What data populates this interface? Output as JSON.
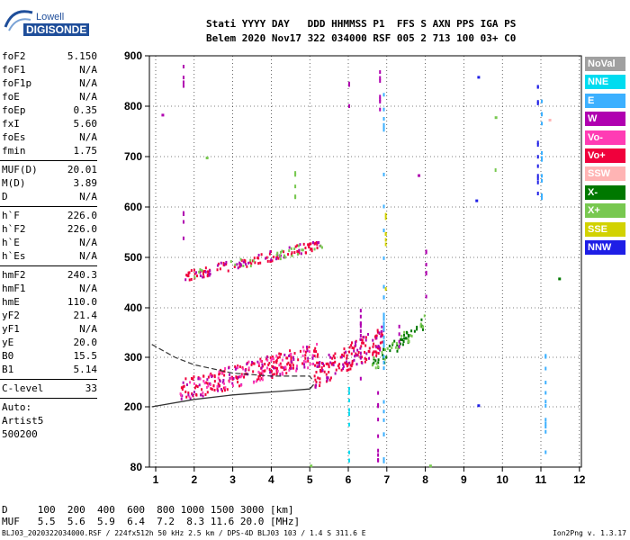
{
  "logo": {
    "top": "Lowell",
    "bottom": "DIGISONDE"
  },
  "header": {
    "line1": "Stati YYYY DAY   DDD HHMMSS P1  FFS S AXN PPS IGA PS",
    "line2": "Belem 2020 Nov17 322 034000 RSF 005 2 713 100 03+ C0"
  },
  "params": {
    "group1": [
      {
        "label": "foF2",
        "value": "5.150"
      },
      {
        "label": "foF1",
        "value": "N/A"
      },
      {
        "label": "foF1p",
        "value": "N/A"
      },
      {
        "label": "foE",
        "value": "N/A"
      },
      {
        "label": "foEp",
        "value": "0.35"
      },
      {
        "label": "fxI",
        "value": "5.60"
      },
      {
        "label": "foEs",
        "value": "N/A"
      },
      {
        "label": "fmin",
        "value": "1.75"
      }
    ],
    "group2": [
      {
        "label": "MUF(D)",
        "value": "20.01"
      },
      {
        "label": "M(D)",
        "value": "3.89"
      },
      {
        "label": "D",
        "value": "N/A"
      }
    ],
    "group3": [
      {
        "label": "h`F",
        "value": "226.0"
      },
      {
        "label": "h`F2",
        "value": "226.0"
      },
      {
        "label": "h`E",
        "value": "N/A"
      },
      {
        "label": "h`Es",
        "value": "N/A"
      }
    ],
    "group4": [
      {
        "label": "hmF2",
        "value": "240.3"
      },
      {
        "label": "hmF1",
        "value": "N/A"
      },
      {
        "label": "hmE",
        "value": "110.0"
      },
      {
        "label": "yF2",
        "value": "21.4"
      },
      {
        "label": "yF1",
        "value": "N/A"
      },
      {
        "label": "yE",
        "value": "20.0"
      },
      {
        "label": "B0",
        "value": "15.5"
      },
      {
        "label": "B1",
        "value": "5.14"
      }
    ],
    "clevel": {
      "label": "C-level",
      "value": "33"
    },
    "auto": [
      "Auto:",
      "Artist5",
      "500200"
    ]
  },
  "legend": [
    {
      "label": "NoVal",
      "color": "#a0a0a0"
    },
    {
      "label": "NNE",
      "color": "#00dcf0"
    },
    {
      "label": "E",
      "color": "#3cb0ff"
    },
    {
      "label": "W",
      "color": "#b000b0"
    },
    {
      "label": "Vo-",
      "color": "#ff3cb4"
    },
    {
      "label": "Vo+",
      "color": "#f0003c"
    },
    {
      "label": "SSW",
      "color": "#ffb4b4"
    },
    {
      "label": "X-",
      "color": "#007800"
    },
    {
      "label": "X+",
      "color": "#78c850"
    },
    {
      "label": "SSE",
      "color": "#d2d200"
    },
    {
      "label": "NNW",
      "color": "#1e1ee6"
    }
  ],
  "table": {
    "row1": "D     100  200  400  600  800 1000 1500 3000 [km]",
    "row2": "MUF   5.5  5.6  5.9  6.4  7.2  8.3 11.6 20.0 [MHz]"
  },
  "footer": {
    "left": "BLJ03_2020322034000.RSF / 224fx512h 50 kHz 2.5 km / DPS-4D BLJ03 103 / 1.4 S 311.6 E",
    "right": "Ion2Png v. 1.3.17"
  },
  "chart_data": {
    "type": "scatter",
    "xlim": [
      1,
      12
    ],
    "ylim": [
      80,
      900
    ],
    "x_ticks": [
      "1",
      "2",
      "3",
      "4",
      "5",
      "6",
      "7",
      "8",
      "9",
      "10",
      "11",
      "12"
    ],
    "y_ticks": [
      "80",
      "200",
      "300",
      "400",
      "500",
      "600",
      "700",
      "800",
      "900"
    ],
    "grid": true,
    "profile_solid": [
      [
        0.9,
        200
      ],
      [
        2,
        215
      ],
      [
        3,
        224
      ],
      [
        4,
        230
      ],
      [
        4.5,
        233
      ],
      [
        5,
        236
      ],
      [
        5.1,
        245
      ]
    ],
    "profile_dashed": [
      [
        0.9,
        326
      ],
      [
        1.5,
        300
      ],
      [
        2,
        285
      ],
      [
        3,
        268
      ],
      [
        4,
        262
      ],
      [
        5,
        262
      ],
      [
        5.1,
        250
      ]
    ],
    "traces": [
      {
        "name": "F trace",
        "x": [
          1.6,
          5.2
        ],
        "y": [
          225,
          300
        ],
        "spread": 45,
        "density": 170,
        "color": "#f0003c"
      },
      {
        "name": "F trace W",
        "x": [
          1.6,
          5.2
        ],
        "y": [
          225,
          300
        ],
        "spread": 45,
        "density": 60,
        "color": "#b000b0"
      },
      {
        "name": "F trace Vo-",
        "x": [
          1.6,
          5.2
        ],
        "y": [
          225,
          300
        ],
        "spread": 45,
        "density": 70,
        "color": "#ff3cb4"
      },
      {
        "name": "upper F",
        "x": [
          5.1,
          6.9
        ],
        "y": [
          255,
          330
        ],
        "spread": 55,
        "density": 120,
        "color": "#f0003c"
      },
      {
        "name": "upper F W",
        "x": [
          5.1,
          6.9
        ],
        "y": [
          255,
          330
        ],
        "spread": 55,
        "density": 50,
        "color": "#b000b0"
      },
      {
        "name": "X trace",
        "x": [
          6.6,
          8.0
        ],
        "y": [
          280,
          370
        ],
        "spread": 30,
        "density": 45,
        "color": "#007800"
      },
      {
        "name": "X+ trace",
        "x": [
          6.6,
          8.0
        ],
        "y": [
          280,
          370
        ],
        "spread": 30,
        "density": 25,
        "color": "#78c850"
      },
      {
        "name": "2F",
        "x": [
          1.7,
          5.3
        ],
        "y": [
          460,
          525
        ],
        "spread": 20,
        "density": 90,
        "color": "#f0003c"
      },
      {
        "name": "2F W",
        "x": [
          1.7,
          5.3
        ],
        "y": [
          460,
          525
        ],
        "spread": 20,
        "density": 40,
        "color": "#b000b0"
      },
      {
        "name": "2F X+",
        "x": [
          1.7,
          5.3
        ],
        "y": [
          460,
          525
        ],
        "spread": 20,
        "density": 30,
        "color": "#78c850"
      }
    ],
    "columns": [
      {
        "x": 1.7,
        "y": [
          830,
          900
        ],
        "color": "#b000b0"
      },
      {
        "x": 1.7,
        "y": [
          540,
          600
        ],
        "color": "#b000b0"
      },
      {
        "x": 6.0,
        "y": [
          780,
          870
        ],
        "color": "#b000b0"
      },
      {
        "x": 6.3,
        "y": [
          250,
          400
        ],
        "color": "#b000b0"
      },
      {
        "x": 6.8,
        "y": [
          760,
          900
        ],
        "color": "#b000b0"
      },
      {
        "x": 6.9,
        "y": [
          90,
          860
        ],
        "color": "#3cb0ff"
      },
      {
        "x": 6.95,
        "y": [
          420,
          590
        ],
        "color": "#d2d200"
      },
      {
        "x": 7.3,
        "y": [
          300,
          380
        ],
        "color": "#b000b0"
      },
      {
        "x": 8.0,
        "y": [
          380,
          520
        ],
        "color": "#b000b0"
      },
      {
        "x": 10.9,
        "y": [
          620,
          850
        ],
        "color": "#1e1ee6"
      },
      {
        "x": 11.0,
        "y": [
          620,
          850
        ],
        "color": "#3cb0ff"
      },
      {
        "x": 11.1,
        "y": [
          90,
          320
        ],
        "color": "#3cb0ff"
      },
      {
        "x": 6.0,
        "y": [
          90,
          250
        ],
        "color": "#00dcf0"
      },
      {
        "x": 6.75,
        "y": [
          90,
          250
        ],
        "color": "#b000b0"
      },
      {
        "x": 4.6,
        "y": [
          600,
          680
        ],
        "color": "#78c850"
      },
      {
        "x": 9.8,
        "y": [
          670,
          700
        ],
        "color": "#78c850"
      }
    ],
    "dots": [
      {
        "x": 1.15,
        "y": 785,
        "color": "#b000b0"
      },
      {
        "x": 9.35,
        "y": 860,
        "color": "#1e1ee6"
      },
      {
        "x": 9.3,
        "y": 615,
        "color": "#1e1ee6"
      },
      {
        "x": 9.35,
        "y": 205,
        "color": "#1e1ee6"
      },
      {
        "x": 11.45,
        "y": 460,
        "color": "#007800"
      },
      {
        "x": 11.2,
        "y": 775,
        "color": "#ffb4b4"
      },
      {
        "x": 9.8,
        "y": 780,
        "color": "#78c850"
      },
      {
        "x": 7.8,
        "y": 665,
        "color": "#b000b0"
      },
      {
        "x": 8.1,
        "y": 85,
        "color": "#78c850"
      },
      {
        "x": 5.0,
        "y": 85,
        "color": "#78c850"
      },
      {
        "x": 2.3,
        "y": 700,
        "color": "#78c850"
      }
    ]
  }
}
